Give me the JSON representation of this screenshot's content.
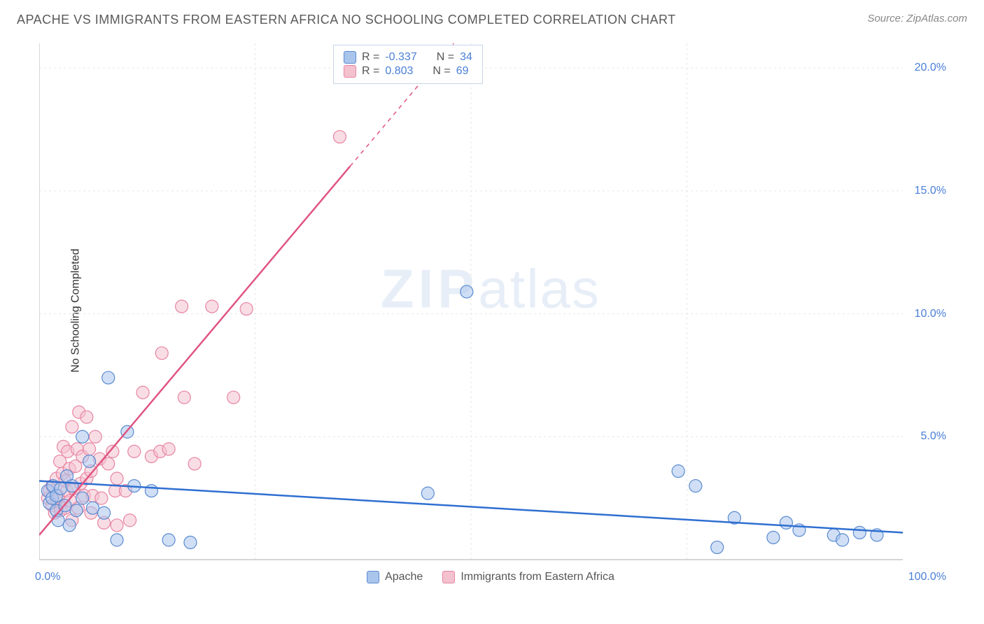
{
  "header": {
    "title": "APACHE VS IMMIGRANTS FROM EASTERN AFRICA NO SCHOOLING COMPLETED CORRELATION CHART",
    "source": "Source: ZipAtlas.com"
  },
  "watermark": {
    "zip": "ZIP",
    "atlas": "atlas"
  },
  "ylabel": "No Schooling Completed",
  "chart": {
    "type": "scatter",
    "background_color": "#ffffff",
    "grid_color": "#e6e6e6",
    "axis_color": "#c8c8c8",
    "tick_color": "#4a7fd6",
    "xlim": [
      0,
      100
    ],
    "ylim": [
      0,
      21
    ],
    "x_ticks": [
      0,
      100
    ],
    "x_tick_labels": [
      "0.0%",
      "100.0%"
    ],
    "y_ticks": [
      5,
      10,
      15,
      20
    ],
    "y_tick_labels": [
      "5.0%",
      "10.0%",
      "15.0%",
      "20.0%"
    ],
    "x_vgrid": [
      25,
      50,
      75
    ],
    "marker_radius": 9,
    "marker_opacity": 0.55,
    "line_width": 2.5,
    "series": [
      {
        "name": "Apache",
        "color_fill": "#a9c5ec",
        "color_stroke": "#5a8ad1",
        "line_color": "#2f6fd1",
        "R": "-0.337",
        "N": "34",
        "regression": {
          "x1": 0,
          "y1": 3.2,
          "x2": 100,
          "y2": 1.1
        },
        "points": [
          [
            1.0,
            2.8
          ],
          [
            1.2,
            2.3
          ],
          [
            1.5,
            2.5
          ],
          [
            1.6,
            3.0
          ],
          [
            2.0,
            2.0
          ],
          [
            2.0,
            2.6
          ],
          [
            2.2,
            1.6
          ],
          [
            2.5,
            2.9
          ],
          [
            3.0,
            2.2
          ],
          [
            3.2,
            3.4
          ],
          [
            3.5,
            1.4
          ],
          [
            3.8,
            3.0
          ],
          [
            4.3,
            2.0
          ],
          [
            5.0,
            2.5
          ],
          [
            5.0,
            5.0
          ],
          [
            5.8,
            4.0
          ],
          [
            6.2,
            2.1
          ],
          [
            7.5,
            1.9
          ],
          [
            8.0,
            7.4
          ],
          [
            9.0,
            0.8
          ],
          [
            10.2,
            5.2
          ],
          [
            11.0,
            3.0
          ],
          [
            13.0,
            2.8
          ],
          [
            15.0,
            0.8
          ],
          [
            17.5,
            0.7
          ],
          [
            45.0,
            2.7
          ],
          [
            49.5,
            10.9
          ],
          [
            74.0,
            3.6
          ],
          [
            76.0,
            3.0
          ],
          [
            78.5,
            0.5
          ],
          [
            80.5,
            1.7
          ],
          [
            85.0,
            0.9
          ],
          [
            86.5,
            1.5
          ],
          [
            88.0,
            1.2
          ],
          [
            92.0,
            1.0
          ],
          [
            93.0,
            0.8
          ],
          [
            95.0,
            1.1
          ],
          [
            97.0,
            1.0
          ]
        ]
      },
      {
        "name": "Immigrants from Eastern Africa",
        "color_fill": "#f4c1cf",
        "color_stroke": "#e785a3",
        "line_color": "#e05582",
        "R": "0.803",
        "N": "69",
        "regression": {
          "x1": 0,
          "y1": 1.0,
          "x2": 48,
          "y2": 21.0
        },
        "dashed_after_x": 36,
        "points": [
          [
            1.0,
            2.5
          ],
          [
            1.2,
            2.8
          ],
          [
            1.5,
            2.2
          ],
          [
            1.5,
            3.0
          ],
          [
            1.8,
            1.9
          ],
          [
            2.0,
            2.4
          ],
          [
            2.0,
            3.3
          ],
          [
            2.2,
            2.6
          ],
          [
            2.4,
            4.0
          ],
          [
            2.5,
            2.0
          ],
          [
            2.7,
            3.5
          ],
          [
            2.8,
            4.6
          ],
          [
            3.0,
            2.1
          ],
          [
            3.0,
            3.2
          ],
          [
            3.2,
            2.8
          ],
          [
            3.3,
            4.4
          ],
          [
            3.5,
            3.7
          ],
          [
            3.6,
            2.4
          ],
          [
            3.8,
            1.6
          ],
          [
            3.8,
            5.4
          ],
          [
            4.0,
            2.9
          ],
          [
            4.2,
            3.8
          ],
          [
            4.4,
            4.5
          ],
          [
            4.5,
            2.1
          ],
          [
            4.6,
            6.0
          ],
          [
            4.8,
            3.1
          ],
          [
            5.0,
            4.2
          ],
          [
            5.2,
            2.6
          ],
          [
            5.5,
            3.3
          ],
          [
            5.5,
            5.8
          ],
          [
            5.8,
            4.5
          ],
          [
            6.0,
            1.9
          ],
          [
            6.0,
            3.6
          ],
          [
            6.2,
            2.6
          ],
          [
            6.5,
            5.0
          ],
          [
            7.0,
            4.1
          ],
          [
            7.2,
            2.5
          ],
          [
            7.5,
            1.5
          ],
          [
            8.0,
            3.9
          ],
          [
            8.5,
            4.4
          ],
          [
            8.8,
            2.8
          ],
          [
            9.0,
            1.4
          ],
          [
            9.0,
            3.3
          ],
          [
            10.0,
            2.8
          ],
          [
            10.5,
            1.6
          ],
          [
            11.0,
            4.4
          ],
          [
            12.0,
            6.8
          ],
          [
            13.0,
            4.2
          ],
          [
            14.0,
            4.4
          ],
          [
            14.2,
            8.4
          ],
          [
            15.0,
            4.5
          ],
          [
            16.5,
            10.3
          ],
          [
            16.8,
            6.6
          ],
          [
            18.0,
            3.9
          ],
          [
            20.0,
            10.3
          ],
          [
            22.5,
            6.6
          ],
          [
            24.0,
            10.2
          ],
          [
            34.8,
            17.2
          ]
        ]
      }
    ]
  },
  "legend": {
    "top": {
      "R_label": "R =",
      "N_label": "N ="
    },
    "bottom": [
      {
        "label": "Apache",
        "fill": "#a9c5ec",
        "stroke": "#5a8ad1"
      },
      {
        "label": "Immigrants from Eastern Africa",
        "fill": "#f4c1cf",
        "stroke": "#e785a3"
      }
    ]
  }
}
